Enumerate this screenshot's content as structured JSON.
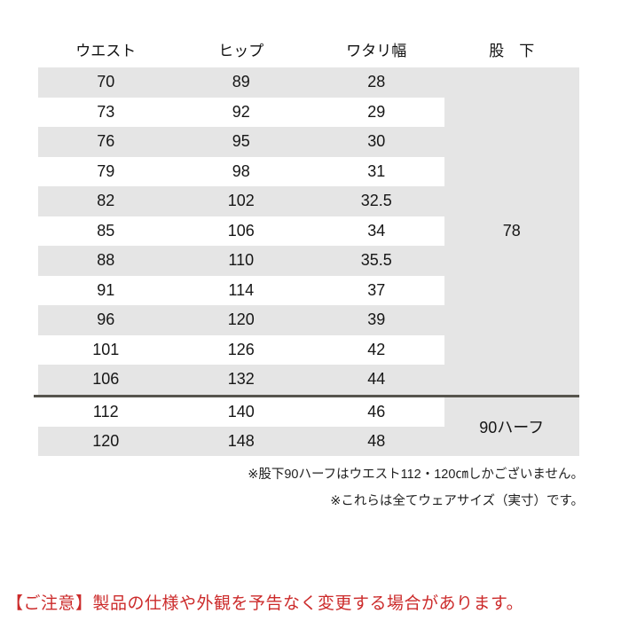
{
  "colors": {
    "row_stripe_gray": "#e5e5e5",
    "group_divider": "#56544d",
    "text": "#161616",
    "caution_red": "#cc2b2b"
  },
  "size_table": {
    "headers": [
      "ウエスト",
      "ヒップ",
      "ワタリ幅",
      "股　下"
    ],
    "rows": [
      [
        "70",
        "89",
        "28"
      ],
      [
        "73",
        "92",
        "29"
      ],
      [
        "76",
        "95",
        "30"
      ],
      [
        "79",
        "98",
        "31"
      ],
      [
        "82",
        "102",
        "32.5"
      ],
      [
        "85",
        "106",
        "34"
      ],
      [
        "88",
        "110",
        "35.5"
      ],
      [
        "91",
        "114",
        "37"
      ],
      [
        "96",
        "120",
        "39"
      ],
      [
        "101",
        "126",
        "42"
      ],
      [
        "106",
        "132",
        "44"
      ],
      [
        "112",
        "140",
        "46"
      ],
      [
        "120",
        "148",
        "48"
      ]
    ],
    "inseam_regular": "78",
    "inseam_half": "90ハーフ"
  },
  "notes": [
    "※股下90ハーフはウエスト112・120㎝しかございません。",
    "※これらは全てウェアサイズ（実寸）です。"
  ],
  "caution": "【ご注意】製品の仕様や外観を予告なく変更する場合があります。"
}
